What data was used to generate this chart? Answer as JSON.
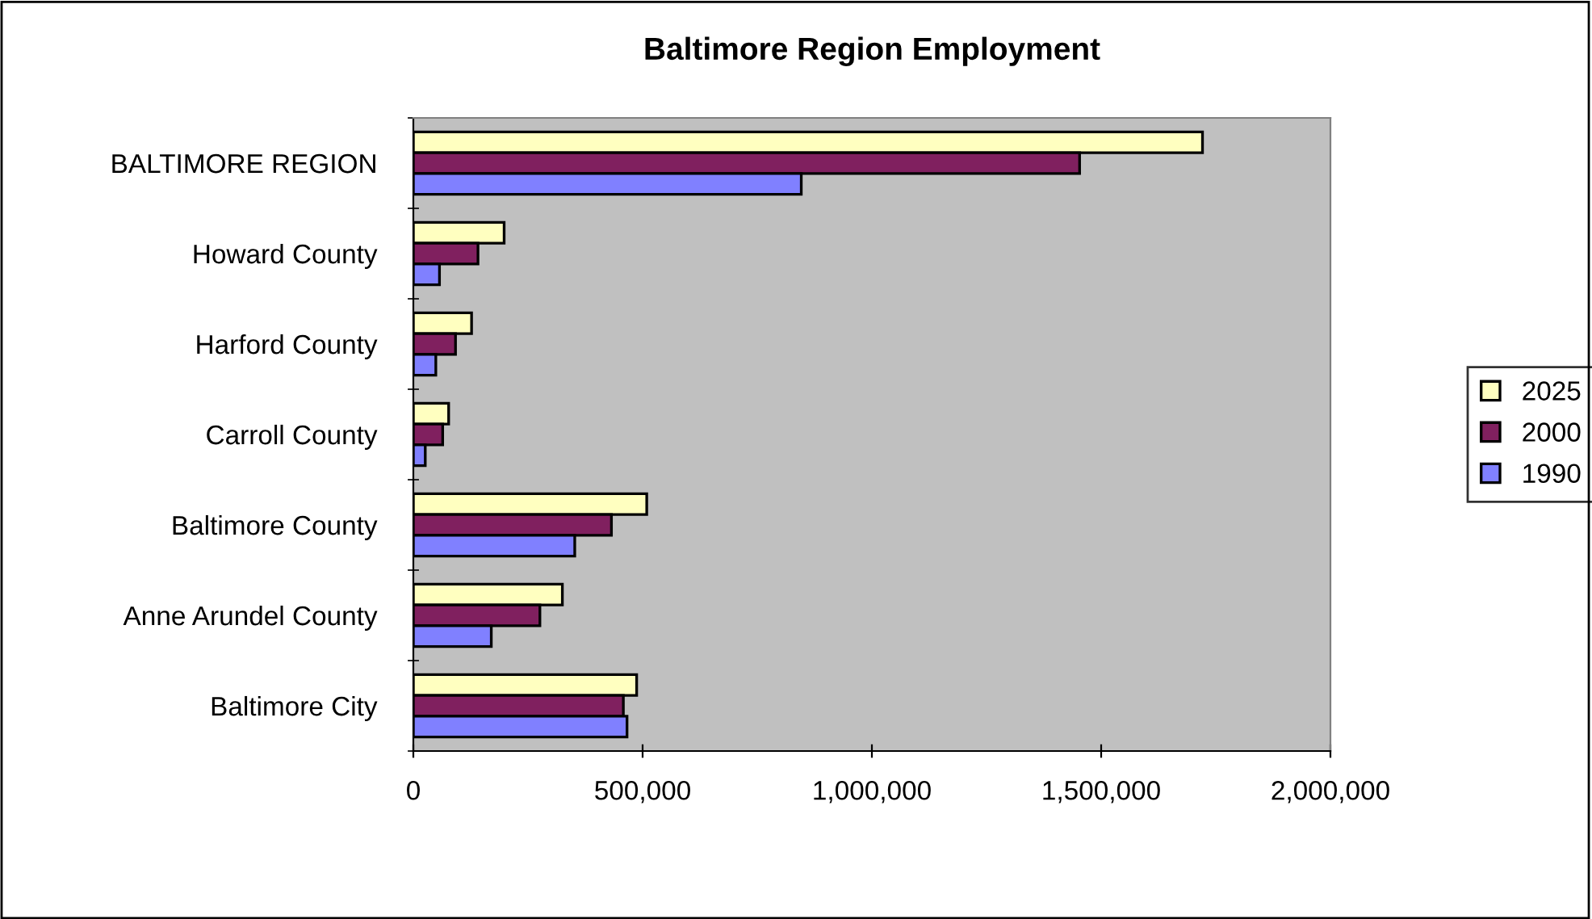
{
  "chart_data": {
    "type": "bar",
    "orientation": "horizontal",
    "title": "Baltimore Region Employment",
    "categories": [
      "BALTIMORE REGION",
      "Howard County",
      "Harford County",
      "Carroll County",
      "Baltimore County",
      "Anne Arundel County",
      "Baltimore City"
    ],
    "series": [
      {
        "name": "2025",
        "color": "#ffffc0",
        "values": [
          1721000,
          198000,
          127000,
          77000,
          509000,
          325000,
          487000
        ]
      },
      {
        "name": "2000",
        "color": "#80205f",
        "values": [
          1453000,
          141000,
          92000,
          64000,
          432000,
          276000,
          458000
        ]
      },
      {
        "name": "1990",
        "color": "#8080ff",
        "values": [
          846000,
          57000,
          49000,
          26000,
          352000,
          170000,
          466000
        ]
      }
    ],
    "xlim": [
      0,
      2000000
    ],
    "xticks": [
      {
        "value": 0,
        "label": "0"
      },
      {
        "value": 500000,
        "label": "500,000"
      },
      {
        "value": 1000000,
        "label": "1,000,000"
      },
      {
        "value": 1500000,
        "label": "1,500,000"
      },
      {
        "value": 2000000,
        "label": "2,000,000"
      }
    ],
    "grid": false,
    "legend": "right"
  }
}
